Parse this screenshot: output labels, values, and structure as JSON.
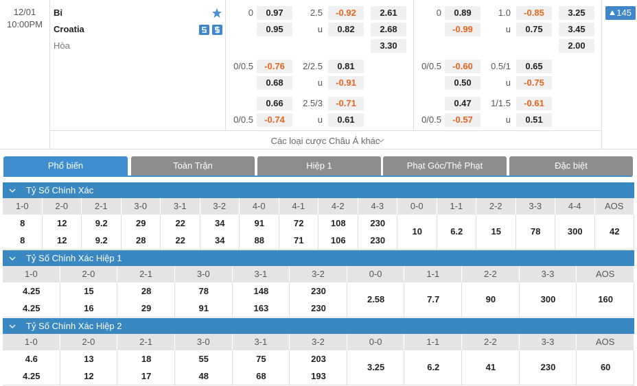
{
  "match": {
    "date": "12/01",
    "time": "10:00PM",
    "home": "Bỉ",
    "away": "Croatia",
    "draw": "Hòa",
    "more_count": "145"
  },
  "full_time": [
    {
      "home_line": "0",
      "home": "0.97",
      "away": "0.95",
      "total_line": "2.5",
      "over": "-0.92",
      "under_label": "u",
      "under": "0.82",
      "1x2": [
        "2.61",
        "2.68",
        "3.30"
      ]
    },
    {
      "home_line": "0/0.5",
      "home": "-0.76",
      "away": "0.68",
      "total_line": "2/2.5",
      "over": "0.81",
      "under_label": "u",
      "under": "-0.91"
    },
    {
      "away_line": "0/0.5",
      "home": "0.66",
      "away": "-0.74",
      "total_line": "2.5/3",
      "over": "-0.71",
      "under_label": "u",
      "under": "0.61"
    }
  ],
  "first_half": [
    {
      "home_line": "0",
      "home": "0.89",
      "away": "-0.99",
      "total_line": "1.0",
      "over": "-0.85",
      "under_label": "u",
      "under": "0.75",
      "1x2": [
        "3.25",
        "3.45",
        "2.00"
      ]
    },
    {
      "home_line": "0/0.5",
      "home": "-0.60",
      "away": "0.50",
      "total_line": "0.5/1",
      "over": "0.65",
      "under_label": "u",
      "under": "-0.75"
    },
    {
      "away_line": "0/0.5",
      "home": "0.47",
      "away": "-0.57",
      "total_line": "1/1.5",
      "over": "-0.61",
      "under_label": "u",
      "under": "0.51"
    }
  ],
  "more_link": "Các loại cược Châu Á khác",
  "tabs": [
    "Phổ biến",
    "Toàn Trận",
    "Hiệp 1",
    "Phạt Góc/Thẻ Phạt",
    "Đặc biệt"
  ],
  "active_tab": 0,
  "sections": [
    {
      "title": "Tỷ Số Chính Xác",
      "columns": [
        {
          "score": "1-0",
          "odds": [
            "8",
            "8"
          ]
        },
        {
          "score": "2-0",
          "odds": [
            "12",
            "12"
          ]
        },
        {
          "score": "2-1",
          "odds": [
            "9.2",
            "9.2"
          ]
        },
        {
          "score": "3-0",
          "odds": [
            "29",
            "28"
          ]
        },
        {
          "score": "3-1",
          "odds": [
            "22",
            "22"
          ]
        },
        {
          "score": "3-2",
          "odds": [
            "34",
            "34"
          ]
        },
        {
          "score": "4-0",
          "odds": [
            "91",
            "88"
          ]
        },
        {
          "score": "4-1",
          "odds": [
            "72",
            "71"
          ]
        },
        {
          "score": "4-2",
          "odds": [
            "108",
            "106"
          ]
        },
        {
          "score": "4-3",
          "odds": [
            "230",
            "230"
          ]
        },
        {
          "score": "0-0",
          "odds": [
            "10"
          ]
        },
        {
          "score": "1-1",
          "odds": [
            "6.2"
          ]
        },
        {
          "score": "2-2",
          "odds": [
            "15"
          ]
        },
        {
          "score": "3-3",
          "odds": [
            "78"
          ]
        },
        {
          "score": "4-4",
          "odds": [
            "300"
          ]
        },
        {
          "score": "AOS",
          "odds": [
            "42"
          ]
        }
      ]
    },
    {
      "title": "Tỷ Số Chính Xác Hiệp 1",
      "columns": [
        {
          "score": "1-0",
          "odds": [
            "4.25",
            "4.25"
          ]
        },
        {
          "score": "2-0",
          "odds": [
            "15",
            "16"
          ]
        },
        {
          "score": "2-1",
          "odds": [
            "28",
            "29"
          ]
        },
        {
          "score": "3-0",
          "odds": [
            "78",
            "91"
          ]
        },
        {
          "score": "3-1",
          "odds": [
            "148",
            "163"
          ]
        },
        {
          "score": "3-2",
          "odds": [
            "230",
            "230"
          ]
        },
        {
          "score": "0-0",
          "odds": [
            "2.58"
          ]
        },
        {
          "score": "1-1",
          "odds": [
            "7.7"
          ]
        },
        {
          "score": "2-2",
          "odds": [
            "90"
          ]
        },
        {
          "score": "3-3",
          "odds": [
            "300"
          ]
        },
        {
          "score": "AOS",
          "odds": [
            "160"
          ]
        }
      ]
    },
    {
      "title": "Tỷ Số Chính Xác Hiệp 2",
      "columns": [
        {
          "score": "1-0",
          "odds": [
            "4.6",
            "4.25"
          ]
        },
        {
          "score": "2-0",
          "odds": [
            "13",
            "12"
          ]
        },
        {
          "score": "2-1",
          "odds": [
            "18",
            "17"
          ]
        },
        {
          "score": "3-0",
          "odds": [
            "55",
            "48"
          ]
        },
        {
          "score": "3-1",
          "odds": [
            "75",
            "68"
          ]
        },
        {
          "score": "3-2",
          "odds": [
            "203",
            "193"
          ]
        },
        {
          "score": "0-0",
          "odds": [
            "3.25"
          ]
        },
        {
          "score": "1-1",
          "odds": [
            "6.2"
          ]
        },
        {
          "score": "2-2",
          "odds": [
            "41"
          ]
        },
        {
          "score": "3-3",
          "odds": [
            "230"
          ]
        },
        {
          "score": "AOS",
          "odds": [
            "60"
          ]
        }
      ]
    }
  ]
}
